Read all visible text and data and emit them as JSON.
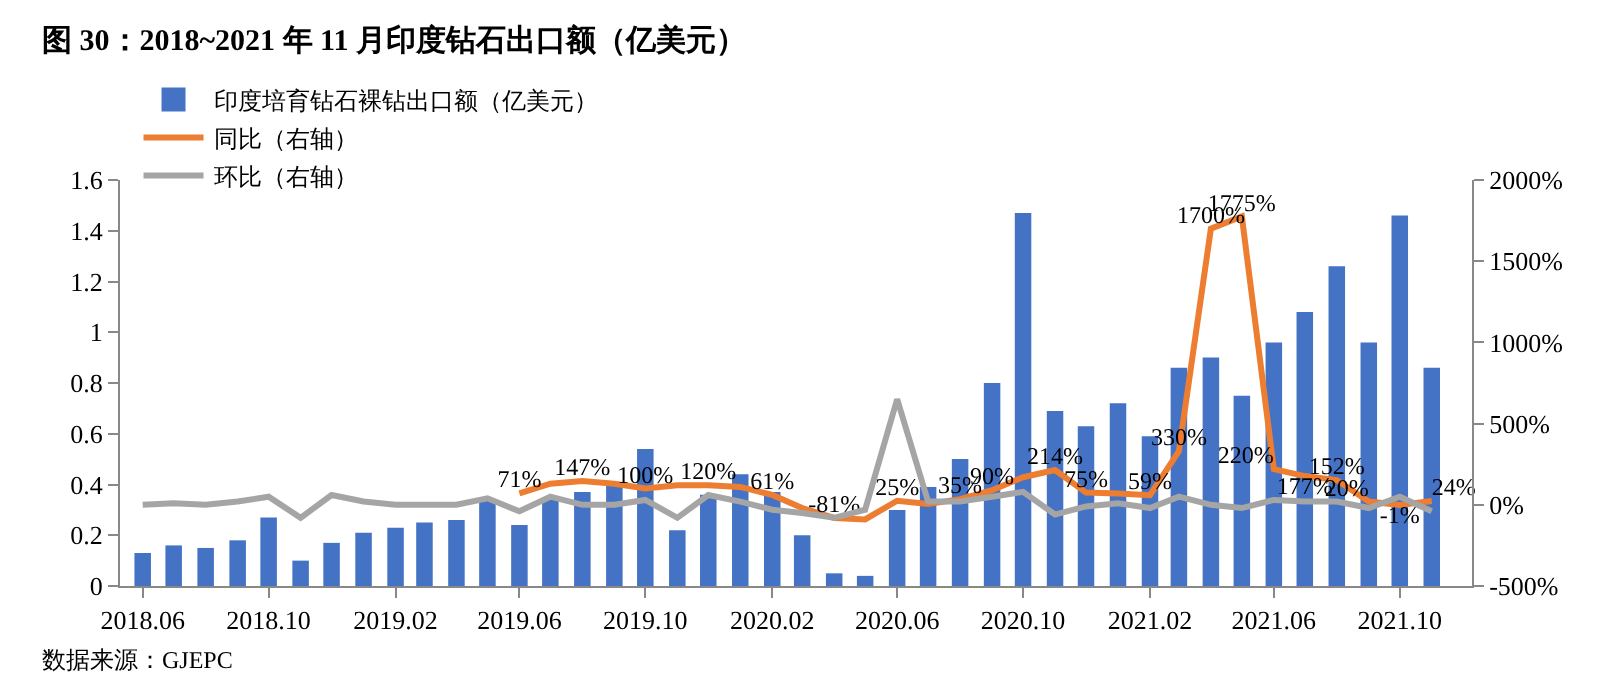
{
  "chart_data": {
    "type": "bar",
    "title": "图 30：2018~2021 年 11 月印度钻石出口额（亿美元）",
    "annotations": [
      "数据来源：GJEPC"
    ],
    "x": [
      "2018-06",
      "2018-07",
      "2018-08",
      "2018-09",
      "2018-10",
      "2018-11",
      "2018-12",
      "2019-01",
      "2019-02",
      "2019-03",
      "2019-04",
      "2019-05",
      "2019-06",
      "2019-07",
      "2019-08",
      "2019-09",
      "2019-10",
      "2019-11",
      "2019-12",
      "2020-01",
      "2020-02",
      "2020-03",
      "2020-04",
      "2020-05",
      "2020-06",
      "2020-07",
      "2020-08",
      "2020-09",
      "2020-10",
      "2020-11",
      "2020-12",
      "2021-01",
      "2021-02",
      "2021-03",
      "2021-04",
      "2021-05",
      "2021-06",
      "2021-07",
      "2021-08",
      "2021-09",
      "2021-10",
      "2021-11"
    ],
    "series": [
      {
        "name": "印度培育钻石裸钻出口额（亿美元）",
        "color": "#4472c4",
        "values": [
          0.13,
          0.16,
          0.15,
          0.18,
          0.27,
          0.1,
          0.17,
          0.21,
          0.23,
          0.25,
          0.26,
          0.34,
          0.24,
          0.34,
          0.37,
          0.4,
          0.54,
          0.22,
          0.36,
          0.44,
          0.37,
          0.2,
          0.05,
          0.04,
          0.3,
          0.39,
          0.5,
          0.8,
          1.47,
          0.69,
          0.63,
          0.72,
          0.59,
          0.86,
          0.9,
          0.75,
          0.96,
          1.08,
          1.26,
          0.96,
          1.46,
          0.86
        ]
      },
      {
        "name": "同比（右轴）",
        "type": "line",
        "axis": "y2",
        "color": "#ed7d31",
        "values": [
          null,
          null,
          null,
          null,
          null,
          null,
          null,
          null,
          null,
          null,
          null,
          null,
          71,
          130,
          147,
          130,
          100,
          120,
          120,
          110,
          61,
          -20,
          -81,
          -90,
          25,
          5,
          35,
          90,
          170,
          214,
          75,
          70,
          59,
          330,
          1700,
          1775,
          220,
          177,
          152,
          20,
          -1,
          24
        ],
        "value_labels": [
          null,
          null,
          null,
          null,
          null,
          null,
          null,
          null,
          null,
          null,
          null,
          null,
          "71%",
          null,
          "147%",
          null,
          "100%",
          null,
          "120%",
          null,
          "61%",
          null,
          "-81%",
          null,
          "25%",
          null,
          "35%",
          "90%",
          null,
          "214%",
          "75%",
          null,
          "59%",
          "330%",
          "1700%",
          "1775%",
          "220%",
          "177%",
          "152%",
          "20%",
          "-1%",
          "24%"
        ]
      },
      {
        "name": "环比（右轴）",
        "type": "line",
        "axis": "y2",
        "color": "#a5a5a5",
        "values": [
          0,
          10,
          0,
          20,
          50,
          -80,
          60,
          20,
          0,
          0,
          0,
          40,
          -40,
          50,
          0,
          0,
          30,
          -80,
          60,
          20,
          -30,
          -50,
          -80,
          -30,
          650,
          20,
          20,
          50,
          80,
          -60,
          -10,
          10,
          -20,
          50,
          0,
          -20,
          30,
          20,
          20,
          -20,
          50,
          -40
        ]
      }
    ],
    "xlim": [
      "2018-05-10",
      "2021-12-10"
    ],
    "xticks": [
      {
        "value": "2018-06",
        "label": "2018.06"
      },
      {
        "value": "2018-10",
        "label": "2018.10"
      },
      {
        "value": "2019-02",
        "label": "2019.02"
      },
      {
        "value": "2019-06",
        "label": "2019.06"
      },
      {
        "value": "2019-10",
        "label": "2019.10"
      },
      {
        "value": "2020-02",
        "label": "2020.02"
      },
      {
        "value": "2020-06",
        "label": "2020.06"
      },
      {
        "value": "2020-10",
        "label": "2020.10"
      },
      {
        "value": "2021-02",
        "label": "2021.02"
      },
      {
        "value": "2021-06",
        "label": "2021.06"
      },
      {
        "value": "2021-10",
        "label": "2021.10"
      }
    ],
    "ylim": [
      0,
      1.6
    ],
    "yticks": [
      0,
      0.2,
      0.4,
      0.6,
      0.8,
      1,
      1.2,
      1.4,
      1.6
    ],
    "y2lim": [
      -500,
      2000
    ],
    "y2ticks": [
      {
        "value": -500,
        "label": "-500%"
      },
      {
        "value": 0,
        "label": "0%"
      },
      {
        "value": 500,
        "label": "500%"
      },
      {
        "value": 1000,
        "label": "1000%"
      },
      {
        "value": 1500,
        "label": "1500%"
      },
      {
        "value": 2000,
        "label": "2000%"
      }
    ],
    "grid": false,
    "legend": "top left",
    "line_style": "solid",
    "marker": "none"
  }
}
